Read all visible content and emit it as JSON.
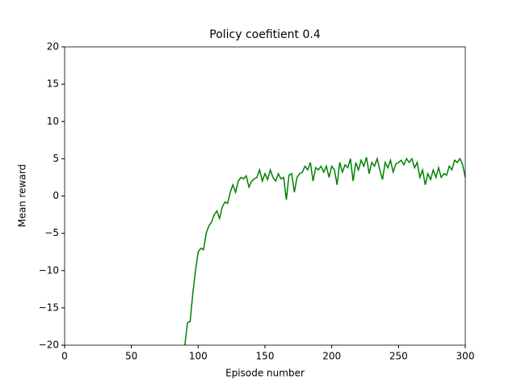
{
  "chart_data": {
    "type": "line",
    "title": "Policy coefitient 0.4",
    "x_label": "Episode number",
    "y_label": "Mean reward",
    "x": [
      90,
      92,
      94,
      96,
      98,
      100,
      102,
      104,
      106,
      108,
      110,
      112,
      114,
      116,
      118,
      120,
      122,
      124,
      126,
      128,
      130,
      132,
      134,
      136,
      138,
      140,
      142,
      144,
      146,
      148,
      150,
      152,
      154,
      156,
      158,
      160,
      162,
      164,
      166,
      168,
      170,
      172,
      174,
      176,
      178,
      180,
      182,
      184,
      186,
      188,
      190,
      192,
      194,
      196,
      198,
      200,
      202,
      204,
      206,
      208,
      210,
      212,
      214,
      216,
      218,
      220,
      222,
      224,
      226,
      228,
      230,
      232,
      234,
      236,
      238,
      240,
      242,
      244,
      246,
      248,
      250,
      252,
      254,
      256,
      258,
      260,
      262,
      264,
      266,
      268,
      270,
      272,
      274,
      276,
      278,
      280,
      282,
      284,
      286,
      288,
      290,
      292,
      294,
      296,
      298,
      300
    ],
    "series": [
      {
        "color": "#008000",
        "values": [
          -20,
          -17,
          -16.8,
          -13,
          -10,
          -7.5,
          -7,
          -7.2,
          -5,
          -4,
          -3.5,
          -2.5,
          -2,
          -3,
          -1.5,
          -0.8,
          -1,
          0.5,
          1.5,
          0.5,
          2,
          2.5,
          2.3,
          2.7,
          1.2,
          2,
          2.3,
          2.5,
          3.5,
          2,
          3,
          2.2,
          3.5,
          2.5,
          2,
          3,
          2.3,
          2.5,
          -0.5,
          2.8,
          3,
          0.5,
          2.5,
          3,
          3.2,
          4,
          3.5,
          4.5,
          2,
          3.8,
          3.5,
          4,
          3.2,
          4,
          2.5,
          4,
          3.5,
          1.5,
          4.5,
          3.2,
          4.2,
          3.8,
          5,
          2,
          4.5,
          3.5,
          4.8,
          4,
          5.2,
          3,
          4.5,
          4,
          5,
          3.5,
          2.2,
          4.5,
          3.8,
          4.8,
          3.2,
          4.3,
          4.5,
          4.8,
          4.2,
          5,
          4.5,
          5,
          3.8,
          4.5,
          2.5,
          3.5,
          1.5,
          3,
          2.2,
          3.5,
          2.5,
          3.8,
          2.5,
          3,
          2.8,
          4,
          3.5,
          4.8,
          4.5,
          5,
          4.2,
          2.5
        ]
      }
    ],
    "xlim": [
      0,
      300
    ],
    "xticks": [
      0,
      50,
      100,
      150,
      200,
      250,
      300
    ],
    "ylim": [
      -20,
      20
    ],
    "yticks": [
      {
        "value": -20,
        "label": "−20"
      },
      {
        "value": -15,
        "label": "−15"
      },
      {
        "value": -10,
        "label": "−10"
      },
      {
        "value": -5,
        "label": "−5"
      },
      0,
      5,
      10,
      15,
      20
    ],
    "grid": false
  }
}
